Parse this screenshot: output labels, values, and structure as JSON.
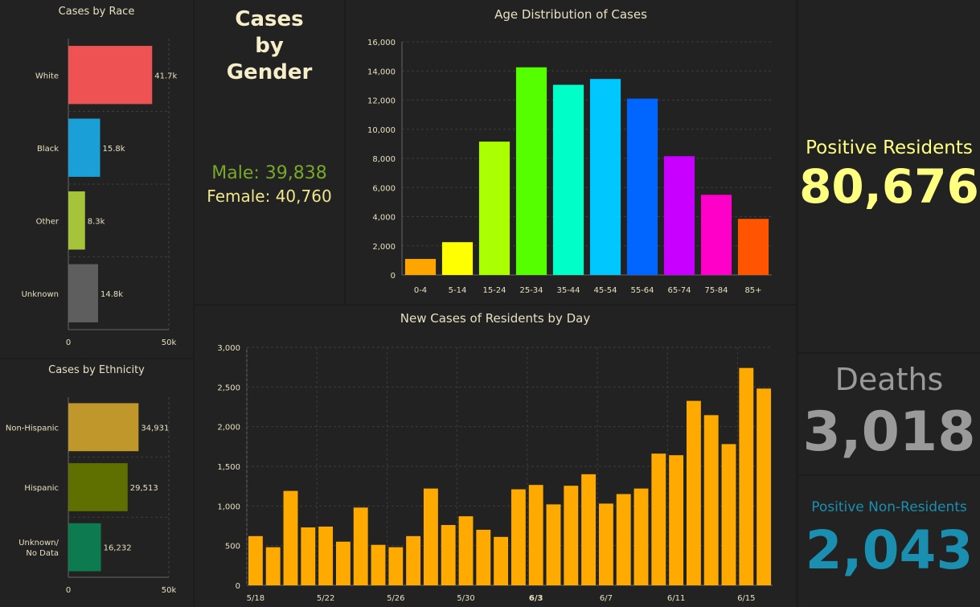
{
  "race": {
    "title": "Cases by Race",
    "chart_data": {
      "type": "bar",
      "orientation": "horizontal",
      "categories": [
        "White",
        "Black",
        "Other",
        "Unknown"
      ],
      "values": [
        41700,
        15800,
        8300,
        14800
      ],
      "labels": [
        "41.7k",
        "15.8k",
        "8.3k",
        "14.8k"
      ],
      "colors": [
        "#ee5253",
        "#1a9fd6",
        "#a6c43a",
        "#5e5e5e"
      ],
      "xlim": [
        0,
        50000
      ],
      "xticks": [
        "0",
        "50k"
      ],
      "grid": true
    }
  },
  "ethnicity": {
    "title": "Cases by Ethnicity",
    "chart_data": {
      "type": "bar",
      "orientation": "horizontal",
      "categories": [
        "Non-Hispanic",
        "Hispanic",
        "Unknown/ No Data"
      ],
      "values": [
        34931,
        29513,
        16232
      ],
      "labels": [
        "34,931",
        "29,513",
        "16,232"
      ],
      "colors": [
        "#c0972a",
        "#607000",
        "#0e7a50"
      ],
      "xlim": [
        0,
        50000
      ],
      "xticks": [
        "0",
        "50k"
      ],
      "grid": true
    }
  },
  "gender": {
    "title": "Cases by Gender",
    "male": "Male: 39,838",
    "female": "Female: 40,760",
    "male_color": "#78a82a",
    "female_color": "#f0e68c"
  },
  "age": {
    "title": "Age Distribution of Cases",
    "chart_data": {
      "type": "bar",
      "categories": [
        "0-4",
        "5-14",
        "15-24",
        "25-34",
        "35-44",
        "45-54",
        "55-64",
        "65-74",
        "75-84",
        "85+"
      ],
      "values": [
        1100,
        2250,
        9150,
        14250,
        13050,
        13450,
        12100,
        8150,
        5500,
        3850
      ],
      "colors": [
        "#ffa500",
        "#ffff00",
        "#aaff00",
        "#55ff00",
        "#00ffc8",
        "#00c8ff",
        "#0066ff",
        "#c800ff",
        "#ff00c8",
        "#ff5500"
      ],
      "ylim": [
        0,
        16000
      ],
      "yticks": [
        "0",
        "2,000",
        "4,000",
        "6,000",
        "8,000",
        "10,000",
        "12,000",
        "14,000",
        "16,000"
      ],
      "grid": true
    }
  },
  "daily": {
    "title": "New Cases of Residents by Day",
    "chart_data": {
      "type": "bar",
      "dates": [
        "5/18",
        "5/19",
        "5/20",
        "5/21",
        "5/22",
        "5/23",
        "5/24",
        "5/25",
        "5/26",
        "5/27",
        "5/28",
        "5/29",
        "5/30",
        "5/31",
        "6/1",
        "6/2",
        "6/3",
        "6/4",
        "6/5",
        "6/6",
        "6/7",
        "6/8",
        "6/9",
        "6/10",
        "6/11",
        "6/12",
        "6/13",
        "6/14",
        "6/15",
        "6/16"
      ],
      "values": [
        620,
        480,
        1190,
        730,
        740,
        550,
        980,
        510,
        480,
        620,
        1220,
        760,
        870,
        700,
        610,
        1210,
        1265,
        1020,
        1255,
        1400,
        1030,
        1150,
        1220,
        1660,
        1640,
        2325,
        2145,
        1780,
        2740,
        2480
      ],
      "xticks": [
        "5/18",
        "5/22",
        "5/26",
        "5/30",
        "6/3",
        "6/7",
        "6/11",
        "6/15"
      ],
      "ylim": [
        0,
        3000
      ],
      "yticks": [
        "0",
        "500",
        "1,000",
        "1,500",
        "2,000",
        "2,500",
        "3,000"
      ],
      "color": "#ffaa00",
      "grid": true
    }
  },
  "positive": {
    "label": "Positive Residents",
    "value": "80,676",
    "color": "#ffff80"
  },
  "deaths": {
    "label": "Deaths",
    "value": "3,018",
    "color": "#9a9a9a"
  },
  "nonres": {
    "label": "Positive Non-Residents",
    "value": "2,043",
    "color": "#1a8fb0"
  }
}
